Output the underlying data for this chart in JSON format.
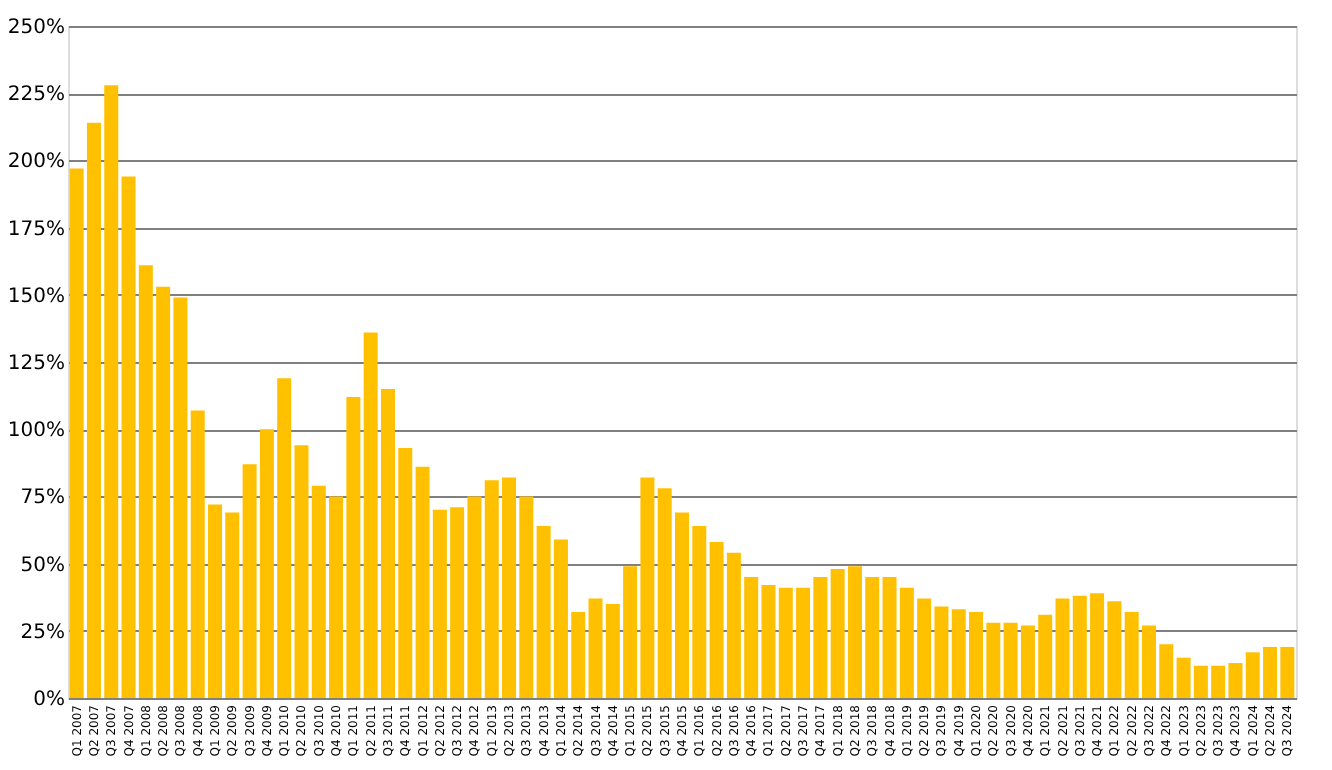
{
  "chart_data": {
    "type": "bar",
    "categories": [
      "Q1 2007",
      "Q2 2007",
      "Q3 2007",
      "Q4 2007",
      "Q1 2008",
      "Q2 2008",
      "Q3 2008",
      "Q4 2008",
      "Q1 2009",
      "Q2 2009",
      "Q3 2009",
      "Q4 2009",
      "Q1 2010",
      "Q2 2010",
      "Q3 2010",
      "Q4 2010",
      "Q1 2011",
      "Q2 2011",
      "Q3 2011",
      "Q4 2011",
      "Q1 2012",
      "Q2 2012",
      "Q3 2012",
      "Q4 2012",
      "Q1 2013",
      "Q2 2013",
      "Q3 2013",
      "Q4 2013",
      "Q1 2014",
      "Q2 2014",
      "Q3 2014",
      "Q4 2014",
      "Q1 2015",
      "Q2 2015",
      "Q3 2015",
      "Q4 2015",
      "Q1 2016",
      "Q2 2016",
      "Q3 2016",
      "Q4 2016",
      "Q1 2017",
      "Q2 2017",
      "Q3 2017",
      "Q4 2017",
      "Q1 2018",
      "Q2 2018",
      "Q3 2018",
      "Q4 2018",
      "Q1 2019",
      "Q2 2019",
      "Q3 2019",
      "Q4 2019",
      "Q1 2020",
      "Q2 2020",
      "Q3 2020",
      "Q4 2020",
      "Q1 2021",
      "Q2 2021",
      "Q3 2021",
      "Q4 2021",
      "Q1 2022",
      "Q2 2022",
      "Q3 2022",
      "Q4 2022",
      "Q1 2023",
      "Q2 2023",
      "Q3 2023",
      "Q4 2023",
      "Q1 2024",
      "Q2 2024",
      "Q3 2024"
    ],
    "values": [
      197,
      214,
      228,
      194,
      161,
      153,
      149,
      107,
      72,
      69,
      87,
      100,
      119,
      94,
      79,
      75,
      112,
      136,
      115,
      93,
      86,
      70,
      71,
      75,
      81,
      82,
      75,
      64,
      59,
      32,
      37,
      35,
      49,
      82,
      78,
      69,
      64,
      58,
      54,
      45,
      42,
      41,
      41,
      45,
      48,
      49,
      45,
      45,
      41,
      37,
      34,
      33,
      32,
      28,
      28,
      27,
      31,
      37,
      38,
      39,
      36,
      32,
      27,
      20,
      15,
      12,
      12,
      13,
      17,
      19,
      19
    ],
    "color": "#ffc000",
    "ylim": [
      0,
      250
    ],
    "yticks": [
      {
        "value": 0,
        "label": "0%"
      },
      {
        "value": 25,
        "label": "25%"
      },
      {
        "value": 50,
        "label": "50%"
      },
      {
        "value": 75,
        "label": "75%"
      },
      {
        "value": 100,
        "label": "100%"
      },
      {
        "value": 125,
        "label": "125%"
      },
      {
        "value": 150,
        "label": "150%"
      },
      {
        "value": 175,
        "label": "175%"
      },
      {
        "value": 200,
        "label": "200%"
      },
      {
        "value": 225,
        "label": "225%"
      },
      {
        "value": 250,
        "label": "250%"
      }
    ],
    "grid": "y"
  }
}
